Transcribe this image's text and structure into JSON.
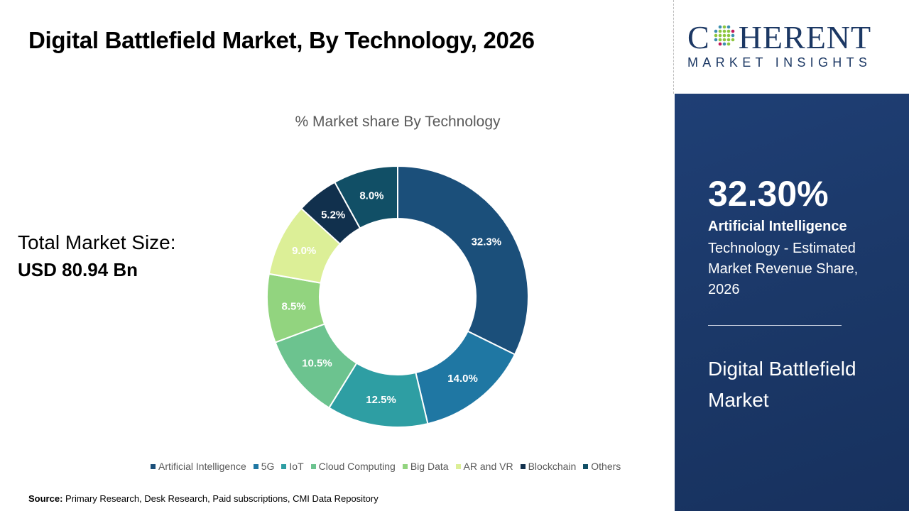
{
  "title": "Digital Battlefield Market, By Technology, 2026",
  "logo": {
    "line1_a": "C",
    "line1_b": "HERENT",
    "line2": "MARKET INSIGHTS"
  },
  "total": {
    "label": "Total Market Size:",
    "value": "USD 80.94 Bn"
  },
  "panel": {
    "big_value": "32.30%",
    "highlight": "Artificial Intelligence",
    "description": "Technology - Estimated Market Revenue Share, 2026",
    "market": "Digital Battlefield Market"
  },
  "source": {
    "label": "Source:",
    "text": " Primary Research, Desk Research, Paid subscriptions, CMI Data Repository"
  },
  "chart_data": {
    "type": "pie",
    "subtype": "donut",
    "title": "% Market share By Technology",
    "categories": [
      "Artificial Intelligence",
      "5G",
      "IoT",
      "Cloud Computing",
      "Big Data",
      "AR and VR",
      "Blockchain",
      "Others"
    ],
    "values": [
      32.3,
      14.0,
      12.5,
      10.5,
      8.5,
      9.0,
      5.2,
      8.0
    ],
    "labels": [
      "32.3%",
      "14.0%",
      "12.5%",
      "10.5%",
      "8.5%",
      "9.0%",
      "5.2%",
      "8.0%"
    ],
    "colors": [
      "#1b4f7a",
      "#1f77a3",
      "#2e9ea3",
      "#6cc38f",
      "#92d47f",
      "#dcef97",
      "#11304d",
      "#114f66"
    ],
    "label_colors": [
      "#fff",
      "#fff",
      "#fff",
      "#fff",
      "#fff",
      "#fff",
      "#fff",
      "#fff"
    ],
    "legend_position": "bottom"
  }
}
